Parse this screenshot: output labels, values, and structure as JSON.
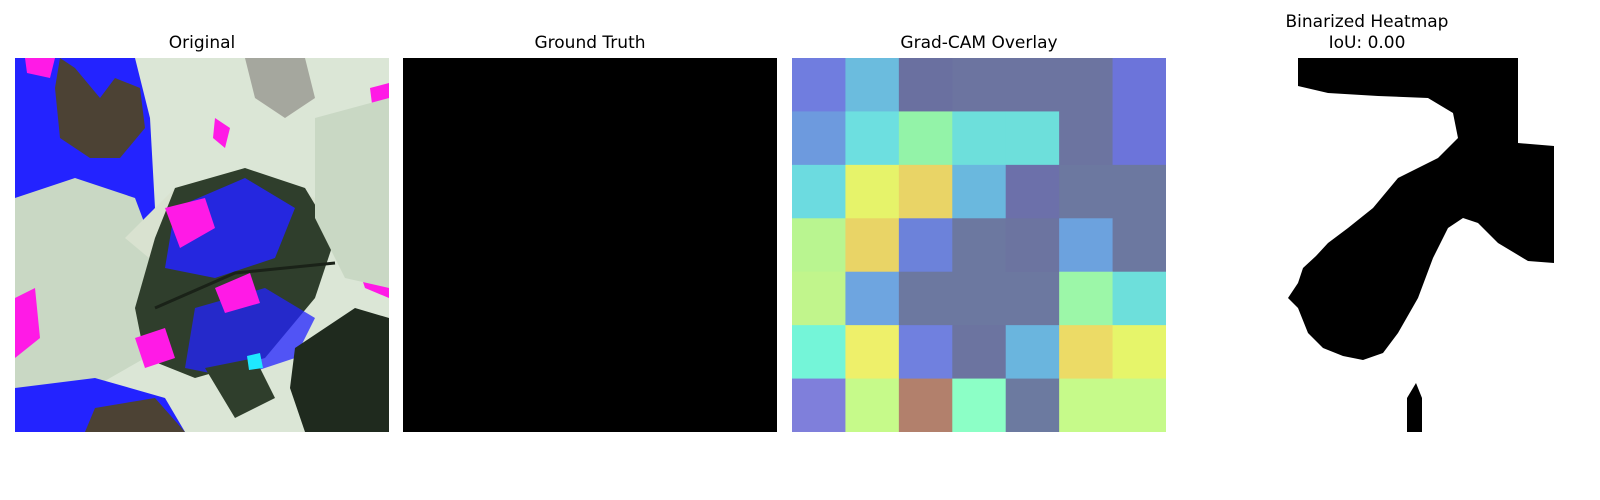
{
  "figure": {
    "panels": [
      {
        "title": "Original"
      },
      {
        "title": "Ground Truth"
      },
      {
        "title": "Grad-CAM Overlay"
      },
      {
        "title": "Binarized Heatmap",
        "subtitle": "IoU: 0.00"
      }
    ]
  },
  "colors": {
    "mask_black": "#000000",
    "mask_white": "#ffffff",
    "leaf_pale": "#c9d8c4",
    "leaf_green": "#2f3e2c",
    "leaf_dark": "#1f2a1e",
    "artifact_blue": "#2323ff",
    "artifact_magenta": "#ff1ae6",
    "background_brown": "#4c4234"
  },
  "gradcam_grid": {
    "rows": 7,
    "cols": 7,
    "cells": [
      [
        "#707ddf",
        "#6bbcde",
        "#6a70a0",
        "#6c74a0",
        "#6c74a0",
        "#6c74a0",
        "#6c74da"
      ],
      [
        "#6d9ade",
        "#6ddfe0",
        "#93f3a8",
        "#6ddfdb",
        "#6ddfdb",
        "#6c74a0",
        "#6c74da"
      ],
      [
        "#6cdbe0",
        "#e6f36a",
        "#e9d466",
        "#6ab8de",
        "#6c70aa",
        "#6c78a0",
        "#6c78a0"
      ],
      [
        "#b9f590",
        "#e9d466",
        "#6c82da",
        "#6c78a0",
        "#6c74a0",
        "#6ca2de",
        "#6c78a0"
      ],
      [
        "#c1f58c",
        "#6ea5e0",
        "#6c78a0",
        "#6c78a0",
        "#6c78a0",
        "#9cf7a8",
        "#6ddfdb"
      ],
      [
        "#74f5d8",
        "#eef06a",
        "#7080df",
        "#6c74a0",
        "#6ab5de",
        "#ecdb66",
        "#e6f56a"
      ],
      [
        "#7f7fdb",
        "#c6fa8a",
        "#b2806c",
        "#8cffc6",
        "#6c7aa0",
        "#c6fa8a",
        "#c6fa8a"
      ]
    ]
  }
}
